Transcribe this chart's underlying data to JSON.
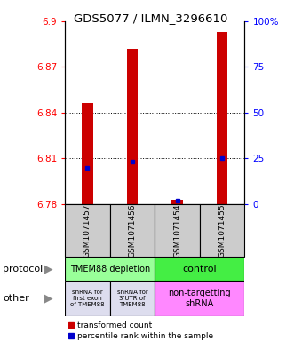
{
  "title": "GDS5077 / ILMN_3296610",
  "samples": [
    "GSM1071457",
    "GSM1071456",
    "GSM1071454",
    "GSM1071455"
  ],
  "transformed_counts": [
    6.846,
    6.882,
    6.783,
    6.893
  ],
  "percentile_ranks": [
    20,
    23,
    2,
    25
  ],
  "y_min": 6.78,
  "y_max": 6.9,
  "y_ticks": [
    6.78,
    6.81,
    6.84,
    6.87,
    6.9
  ],
  "y2_tick_labels": [
    "0",
    "25",
    "50",
    "75",
    "100%"
  ],
  "bar_color": "#cc0000",
  "dot_color": "#0000cc",
  "grid_lines": [
    6.81,
    6.84,
    6.87
  ],
  "bar_width": 0.25,
  "protocol_green_light": "#99ff99",
  "protocol_green_dark": "#44ee44",
  "other_lavender": "#ddddee",
  "other_magenta": "#ff88ff",
  "legend_red_label": "transformed count",
  "legend_blue_label": "percentile rank within the sample"
}
